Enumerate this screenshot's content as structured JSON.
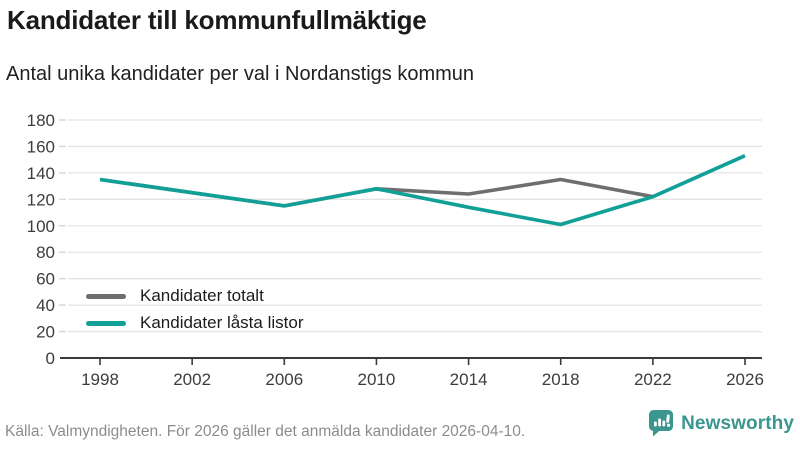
{
  "chart_data": {
    "type": "line",
    "title": "Kandidater till kommunfullmäktige",
    "subtitle": "Antal unika kandidater per val i Nordanstigs kommun",
    "x": [
      1998,
      2002,
      2006,
      2010,
      2014,
      2018,
      2022,
      2026
    ],
    "series": [
      {
        "name": "Kandidater totalt",
        "color": "#6e6e6e",
        "values": [
          135,
          125,
          115,
          128,
          124,
          135,
          122,
          null
        ]
      },
      {
        "name": "Kandidater låsta listor",
        "color": "#11a098",
        "values": [
          135,
          125,
          115,
          128,
          114,
          101,
          122,
          153
        ]
      }
    ],
    "ylim": [
      0,
      180
    ],
    "ytick_step": 20,
    "grid": true,
    "legend_position": "inside-bottom-left",
    "xlabel": "",
    "ylabel": ""
  },
  "footer": {
    "source": "Källa: Valmyndigheten. För 2026 gäller det anmälda kandidater 2026-04-10."
  },
  "branding": {
    "name": "Newsworthy",
    "color": "#3a968f",
    "icon": "newsworthy-speech-bubble-bar-chart-icon"
  },
  "colors": {
    "axis_text": "#3d3d3d",
    "axis_line": "#3b3b3b",
    "gridline": "#e4e4e4",
    "y_tick": "#d9d9d9"
  }
}
